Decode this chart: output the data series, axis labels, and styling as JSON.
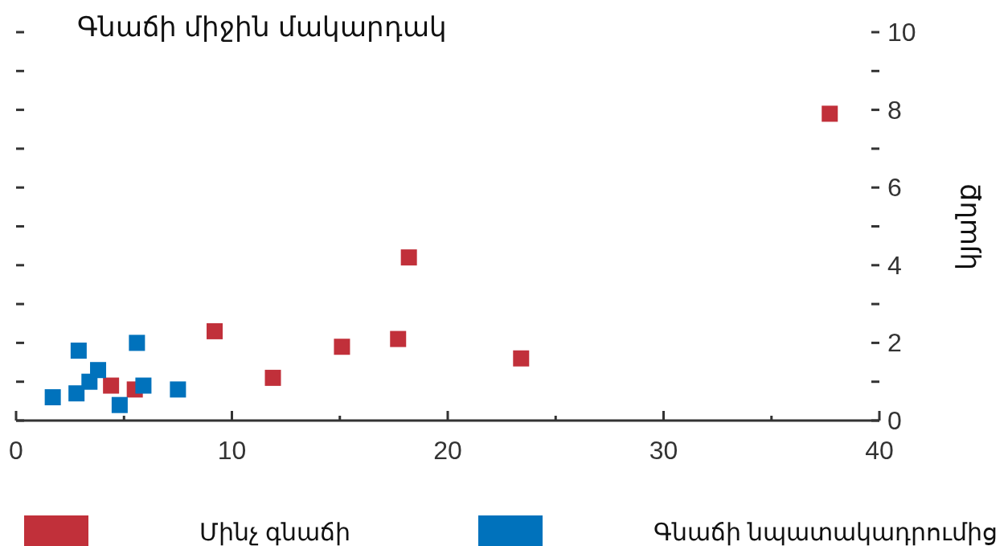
{
  "chart_data": {
    "type": "scatter",
    "title": "Գնաճի միջին մակարդակ",
    "ylabel": "կյանք",
    "xlim": [
      0,
      40
    ],
    "xticks": [
      0,
      {
        "value": 5,
        "label": null
      },
      10,
      {
        "value": 15,
        "label": null
      },
      20,
      {
        "value": 25,
        "label": null
      },
      30,
      {
        "value": 35,
        "label": null
      },
      40
    ],
    "ylim": [
      0,
      10
    ],
    "yticks": [
      0,
      {
        "value": 1,
        "label": null
      },
      2,
      {
        "value": 3,
        "label": null
      },
      4,
      {
        "value": 5,
        "label": null
      },
      6,
      {
        "value": 7,
        "label": null
      },
      8,
      {
        "value": 9,
        "label": null
      },
      10
    ],
    "marker": "square",
    "legend": "bottom",
    "grid": false,
    "series": [
      {
        "name": "Մինչ գնաճի",
        "color": "#c1303a",
        "x": [
          37.7,
          18.2,
          9.2,
          15.1,
          17.7,
          23.4,
          11.9,
          4.4,
          5.5
        ],
        "values": [
          7.9,
          4.2,
          2.3,
          1.9,
          2.1,
          1.6,
          1.1,
          0.9,
          0.8
        ]
      },
      {
        "name": "Գնաճի նպատակադրումից",
        "color": "#0072bc",
        "x": [
          1.7,
          2.8,
          2.9,
          3.4,
          3.8,
          4.8,
          5.6,
          5.9,
          7.5
        ],
        "values": [
          0.6,
          0.7,
          1.8,
          1.0,
          1.3,
          0.4,
          2.0,
          0.9,
          0.8
        ]
      }
    ]
  }
}
